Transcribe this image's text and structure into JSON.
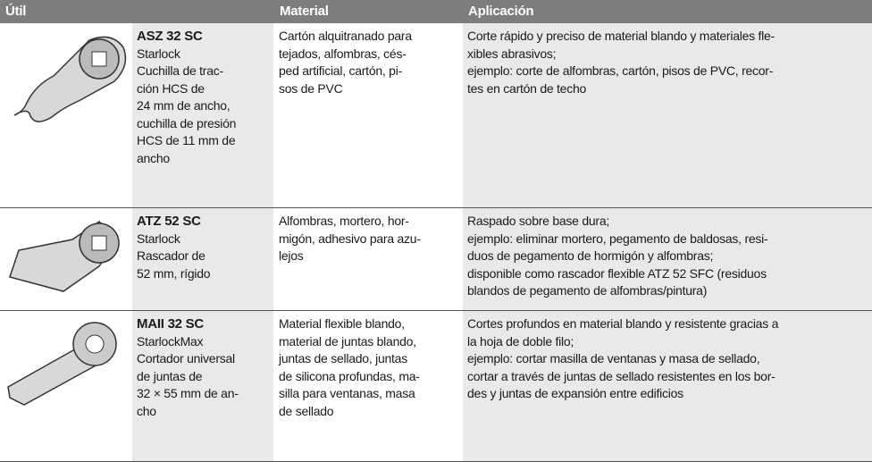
{
  "header": [
    "Útil",
    "Material",
    "Aplicación"
  ],
  "rows": [
    {
      "name": "ASZ 32 SC",
      "tool": [
        "Starlock",
        "Cuchilla de trac-",
        "ción HCS de",
        "24 mm de ancho,",
        "cuchilla de presión",
        "HCS de 11 mm de",
        "ancho"
      ],
      "material": [
        "Cartón alquitranado para",
        "tejados, alfombras, cés-",
        "ped artificial, cartón, pi-",
        "sos de PVC"
      ],
      "application": [
        "Corte rápido y preciso de material blando y materiales fle-",
        "xibles abrasivos;",
        "ejemplo: corte de alfombras, cartón, pisos de PVC, recor-",
        "tes en cartón de techo"
      ]
    },
    {
      "name": "ATZ 52 SC",
      "tool": [
        "Starlock",
        "Rascador de",
        "52 mm, rígido"
      ],
      "material": [
        "Alfombras, mortero, hor-",
        "migón, adhesivo para azu-",
        "lejos"
      ],
      "application": [
        "Raspado sobre base dura;",
        "ejemplo: eliminar mortero, pegamento de baldosas, resi-",
        "duos de pegamento de hormigón y alfombras;",
        "disponible como rascador flexible ATZ 52 SFC (residuos",
        "blandos de pegamento de alfombras/pintura)"
      ]
    },
    {
      "name": "MAII 32 SC",
      "tool": [
        "StarlockMax",
        "Cortador universal",
        "de juntas de",
        "32 × 55 mm de an-",
        "cho"
      ],
      "material": [
        "Material flexible blando,",
        "material de juntas blando,",
        "juntas de sellado, juntas",
        "de silicona profundas, ma-",
        "silla para ventanas, masa",
        "de sellado"
      ],
      "application": [
        "Cortes profundos en material blando y resistente gracias a",
        "la hoja de doble filo;",
        "ejemplo: cortar masilla de ventanas y masa de sellado,",
        "cortar a través de juntas de sellado resistentes en los bor-",
        "des y juntas de expansión entre edificios"
      ]
    }
  ]
}
